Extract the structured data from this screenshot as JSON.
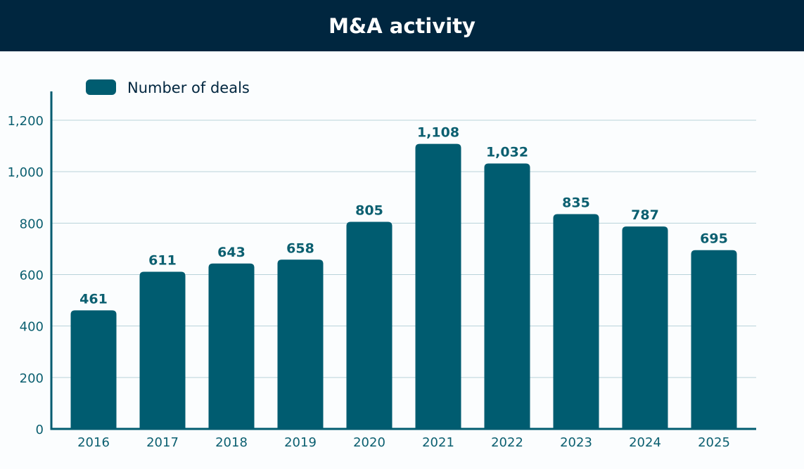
{
  "header": {
    "title": "M&A activity"
  },
  "chart_data": {
    "type": "bar",
    "title": "M&A activity",
    "categories": [
      "2016",
      "2017",
      "2018",
      "2019",
      "2020",
      "2021",
      "2022",
      "2023",
      "2024",
      "2025"
    ],
    "series": [
      {
        "name": "Number of deals",
        "values": [
          461,
          611,
          643,
          658,
          805,
          1108,
          1032,
          835,
          787,
          695
        ]
      }
    ],
    "data_labels": [
      "461",
      "611",
      "643",
      "658",
      "805",
      "1,108",
      "1,032",
      "835",
      "787",
      "695"
    ],
    "yticks": [
      0,
      200,
      400,
      600,
      800,
      1000,
      1200
    ],
    "ytick_labels": [
      "0",
      "200",
      "400",
      "600",
      "800",
      "1,000",
      "1,200"
    ],
    "ylim": [
      0,
      1200
    ],
    "grid": true,
    "legend_position": "top-left",
    "colors": {
      "bar": "#005c70",
      "header": "#00263f",
      "grid": "#b9d3da",
      "axis": "#005c70"
    }
  }
}
